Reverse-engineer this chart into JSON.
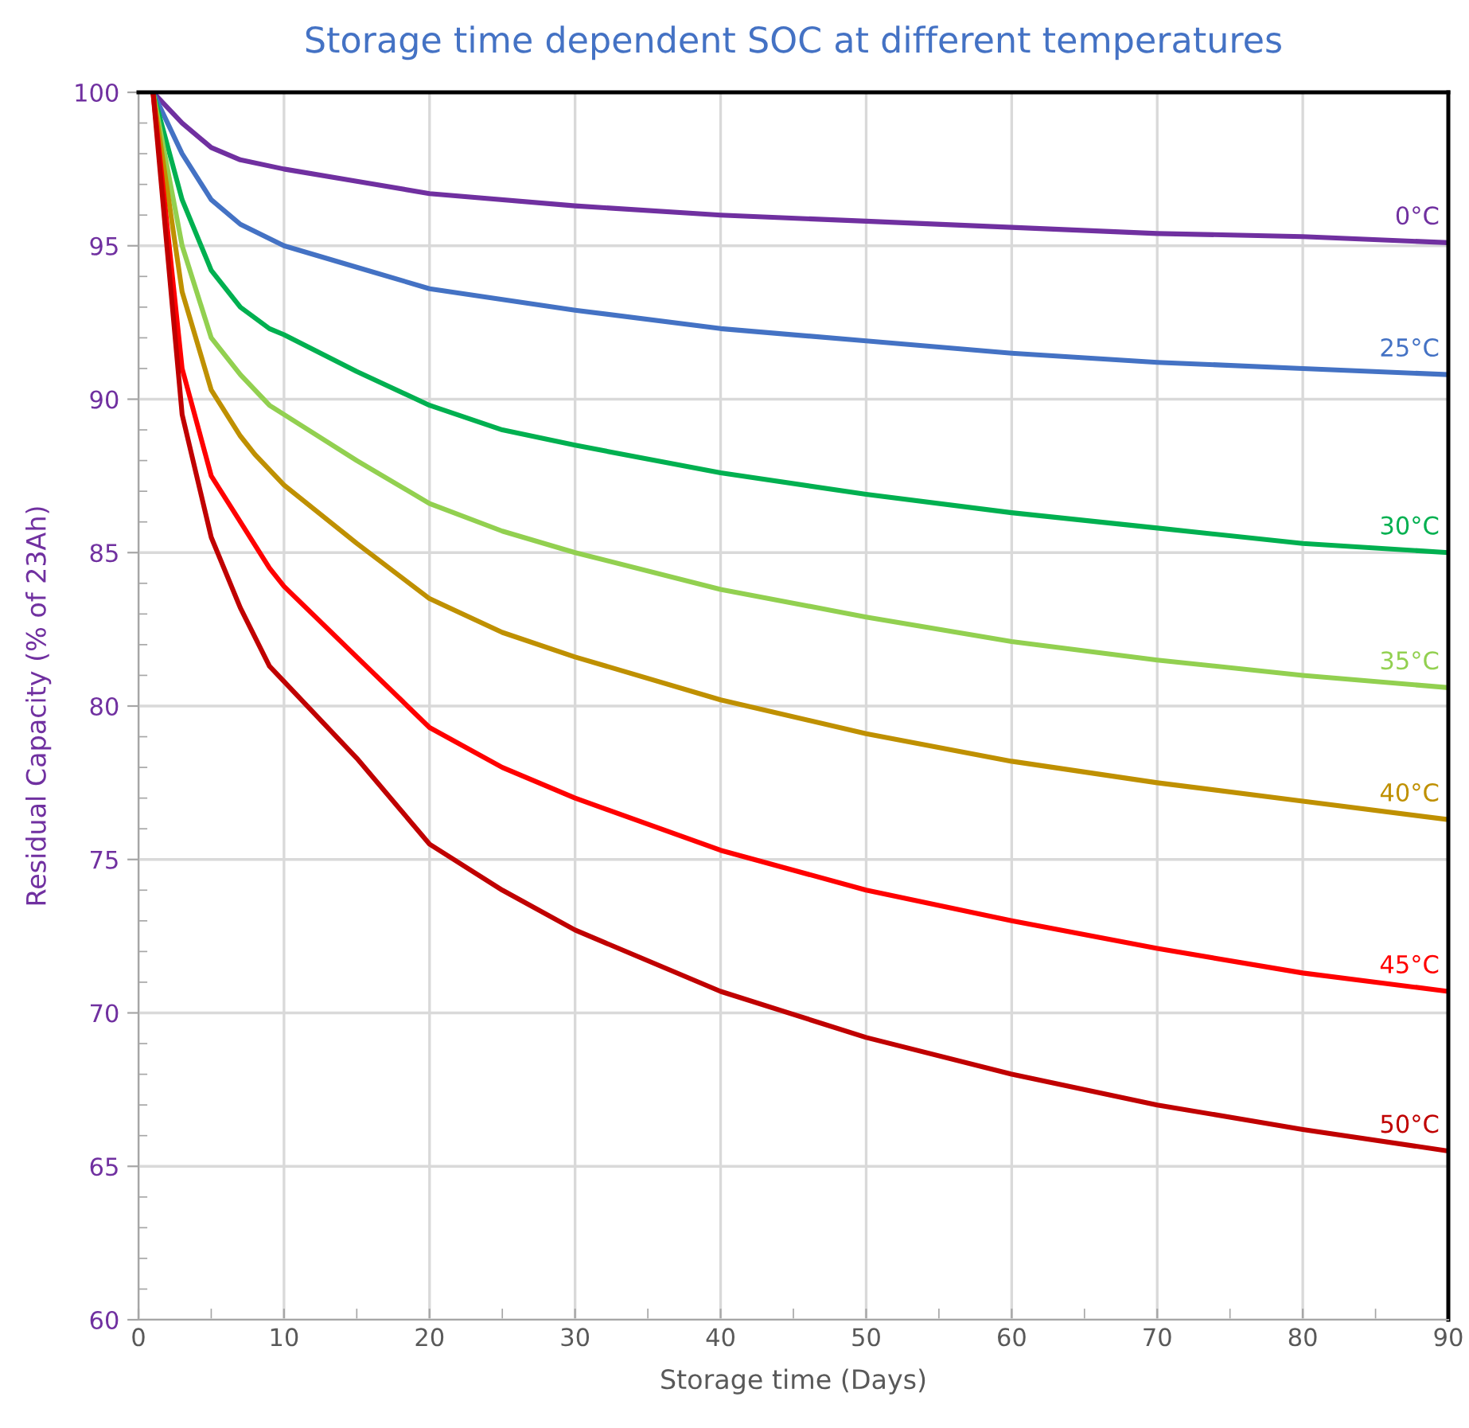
{
  "chart_data": {
    "type": "line",
    "title": "Storage time dependent SOC at different temperatures",
    "xlabel": "Storage time (Days)",
    "ylabel": "Residual Capacity (% of 23Ah)",
    "xlim": [
      0,
      90
    ],
    "ylim": [
      60,
      100
    ],
    "xticks": [
      0,
      {
        "value": 5,
        "label": null
      },
      10,
      {
        "value": 15,
        "label": null
      },
      20,
      {
        "value": 25,
        "label": null
      },
      30,
      {
        "value": 35,
        "label": null
      },
      40,
      {
        "value": 45,
        "label": null
      },
      50,
      {
        "value": 55,
        "label": null
      },
      60,
      {
        "value": 65,
        "label": null
      },
      70,
      {
        "value": 75,
        "label": null
      },
      80,
      {
        "value": 85,
        "label": null
      },
      90
    ],
    "yticks": [
      60,
      {
        "value": 61,
        "label": null
      },
      {
        "value": 62,
        "label": null
      },
      {
        "value": 63,
        "label": null
      },
      {
        "value": 64,
        "label": null
      },
      65,
      {
        "value": 66,
        "label": null
      },
      {
        "value": 67,
        "label": null
      },
      {
        "value": 68,
        "label": null
      },
      {
        "value": 69,
        "label": null
      },
      70,
      {
        "value": 71,
        "label": null
      },
      {
        "value": 72,
        "label": null
      },
      {
        "value": 73,
        "label": null
      },
      {
        "value": 74,
        "label": null
      },
      75,
      {
        "value": 76,
        "label": null
      },
      {
        "value": 77,
        "label": null
      },
      {
        "value": 78,
        "label": null
      },
      {
        "value": 79,
        "label": null
      },
      80,
      {
        "value": 81,
        "label": null
      },
      {
        "value": 82,
        "label": null
      },
      {
        "value": 83,
        "label": null
      },
      {
        "value": 84,
        "label": null
      },
      85,
      {
        "value": 86,
        "label": null
      },
      {
        "value": 87,
        "label": null
      },
      {
        "value": 88,
        "label": null
      },
      {
        "value": 89,
        "label": null
      },
      90,
      {
        "value": 91,
        "label": null
      },
      {
        "value": 92,
        "label": null
      },
      {
        "value": 93,
        "label": null
      },
      {
        "value": 94,
        "label": null
      },
      95,
      {
        "value": 96,
        "label": null
      },
      {
        "value": 97,
        "label": null
      },
      {
        "value": 98,
        "label": null
      },
      {
        "value": 99,
        "label": null
      },
      100
    ],
    "grid": true,
    "legend": false,
    "marker": "none",
    "line_style": "solid",
    "series": [
      {
        "name": "0°C",
        "color": "#7030a0",
        "x": [
          1,
          3,
          5,
          7,
          10,
          15,
          20,
          30,
          40,
          50,
          60,
          70,
          80,
          90
        ],
        "values": [
          100,
          99,
          98.2,
          97.8,
          97.5,
          97.1,
          96.7,
          96.3,
          96.0,
          95.8,
          95.6,
          95.4,
          95.3,
          95.1
        ]
      },
      {
        "name": "25°C",
        "color": "#4472c4",
        "x": [
          1,
          3,
          5,
          7,
          10,
          15,
          20,
          30,
          40,
          50,
          60,
          70,
          80,
          90
        ],
        "values": [
          100,
          98,
          96.5,
          95.7,
          95.0,
          94.3,
          93.6,
          92.9,
          92.3,
          91.9,
          91.5,
          91.2,
          91.0,
          90.8
        ]
      },
      {
        "name": "30°C",
        "color": "#00b050",
        "x": [
          1,
          3,
          5,
          7,
          9,
          10,
          15,
          20,
          25,
          30,
          40,
          50,
          60,
          70,
          80,
          90
        ],
        "values": [
          100,
          96.5,
          94.2,
          93.0,
          92.3,
          92.1,
          90.9,
          89.8,
          89.0,
          88.5,
          87.6,
          86.9,
          86.3,
          85.8,
          85.3,
          85.0
        ]
      },
      {
        "name": "35°C",
        "color": "#92d050",
        "x": [
          1,
          3,
          5,
          7,
          9,
          10,
          15,
          20,
          25,
          30,
          40,
          50,
          60,
          70,
          80,
          90
        ],
        "values": [
          100,
          95,
          92,
          90.8,
          89.8,
          89.5,
          88,
          86.6,
          85.7,
          85.0,
          83.8,
          82.9,
          82.1,
          81.5,
          81.0,
          80.6
        ]
      },
      {
        "name": "40°C",
        "color": "#bf9000",
        "x": [
          1,
          3,
          5,
          7,
          8,
          10,
          15,
          20,
          25,
          30,
          40,
          50,
          60,
          70,
          80,
          90
        ],
        "values": [
          100,
          93.5,
          90.3,
          88.8,
          88.2,
          87.2,
          85.3,
          83.5,
          82.4,
          81.6,
          80.2,
          79.1,
          78.2,
          77.5,
          76.9,
          76.3
        ]
      },
      {
        "name": "45°C",
        "color": "#ff0000",
        "x": [
          1,
          3,
          5,
          7,
          9,
          10,
          15,
          20,
          25,
          30,
          40,
          50,
          60,
          70,
          80,
          90
        ],
        "values": [
          100,
          91,
          87.5,
          86,
          84.5,
          83.9,
          81.6,
          79.3,
          78.0,
          77.0,
          75.3,
          74.0,
          73.0,
          72.1,
          71.3,
          70.7
        ]
      },
      {
        "name": "50°C",
        "color": "#c00000",
        "x": [
          1,
          3,
          5,
          7,
          9,
          10,
          15,
          20,
          25,
          30,
          40,
          50,
          60,
          70,
          80,
          90
        ],
        "values": [
          100,
          89.5,
          85.5,
          83.2,
          81.3,
          80.8,
          78.3,
          75.5,
          74.0,
          72.7,
          70.7,
          69.2,
          68.0,
          67.0,
          66.2,
          65.5
        ]
      }
    ]
  }
}
